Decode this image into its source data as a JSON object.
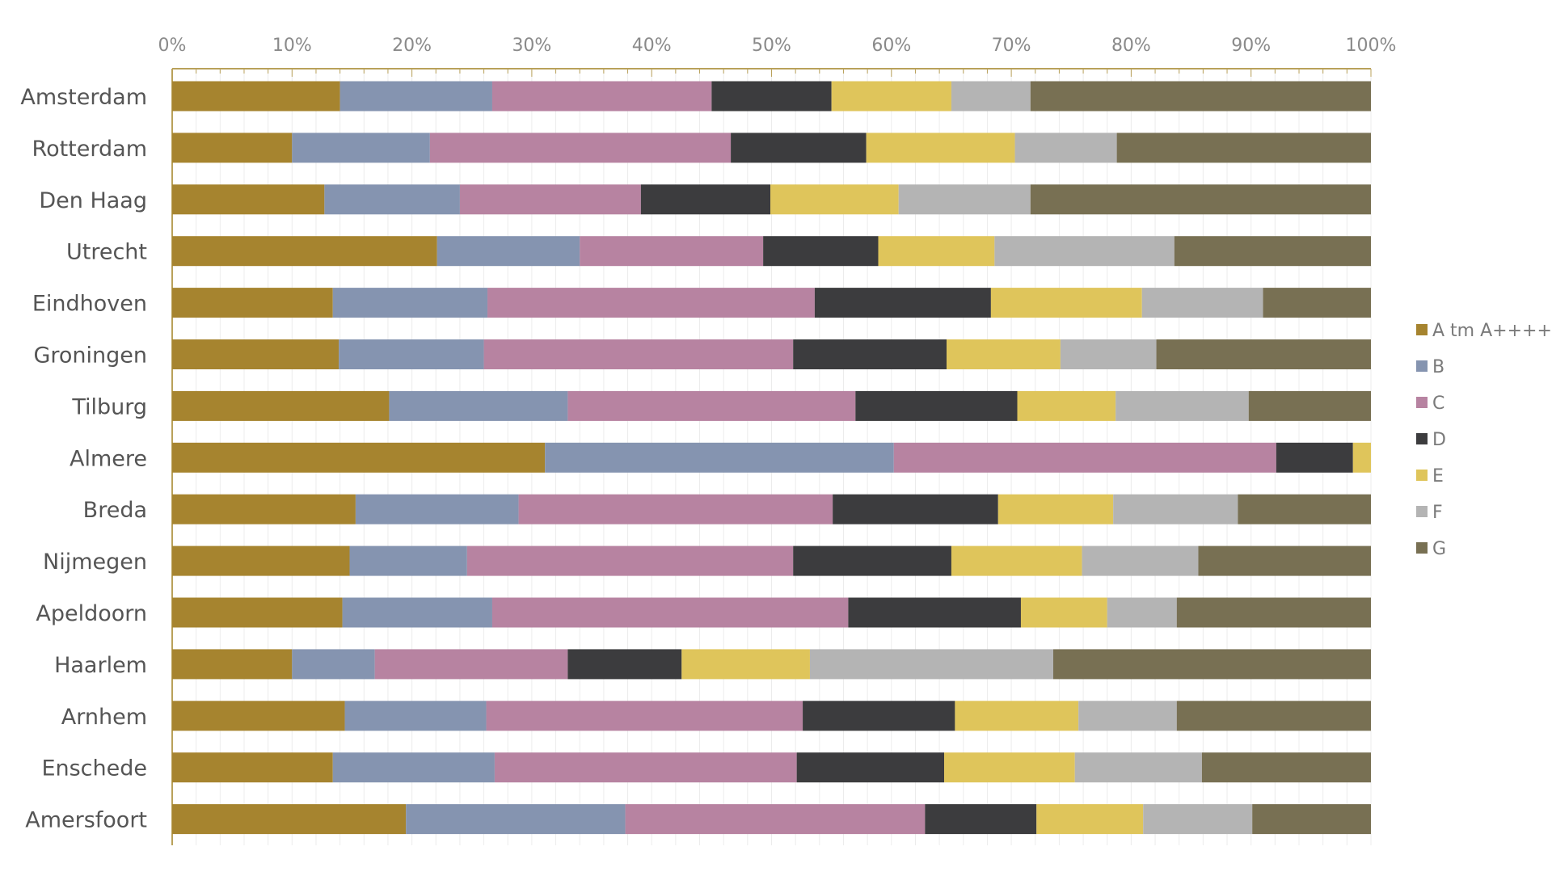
{
  "chart_data": {
    "type": "bar",
    "orientation": "horizontal",
    "stacked": "percent",
    "title": "",
    "xlabel": "",
    "ylabel": "",
    "xlim": [
      0,
      100
    ],
    "x_ticks": [
      "0%",
      "10%",
      "20%",
      "30%",
      "40%",
      "50%",
      "60%",
      "70%",
      "80%",
      "90%",
      "100%"
    ],
    "grid": true,
    "legend_position": "right",
    "categories": [
      "Amsterdam",
      "Rotterdam",
      "Den Haag",
      "Utrecht",
      "Eindhoven",
      "Groningen",
      "Tilburg",
      "Almere",
      "Breda",
      "Nijmegen",
      "Apeldoorn",
      "Haarlem",
      "Arnhem",
      "Enschede",
      "Amersfoort"
    ],
    "series": [
      {
        "name": "A tm A++++",
        "color": "#a6842f",
        "values": [
          14.0,
          10.0,
          12.7,
          22.1,
          13.4,
          13.9,
          18.1,
          31.1,
          15.3,
          14.8,
          14.2,
          10.0,
          14.4,
          13.4,
          19.5
        ]
      },
      {
        "name": "B",
        "color": "#8594b0",
        "values": [
          12.7,
          11.5,
          11.3,
          11.9,
          12.9,
          12.1,
          14.9,
          29.1,
          13.6,
          9.8,
          12.5,
          6.9,
          11.8,
          13.5,
          18.3
        ]
      },
      {
        "name": "C",
        "color": "#b783a1",
        "values": [
          18.3,
          25.1,
          15.1,
          15.3,
          27.3,
          25.8,
          24.0,
          31.9,
          26.2,
          27.2,
          29.7,
          16.1,
          26.4,
          25.2,
          25.0
        ]
      },
      {
        "name": "D",
        "color": "#3c3c3e",
        "values": [
          10.0,
          11.3,
          10.8,
          9.6,
          14.7,
          12.8,
          13.5,
          6.4,
          13.8,
          13.2,
          14.4,
          9.5,
          12.7,
          12.3,
          9.3
        ]
      },
      {
        "name": "E",
        "color": "#dfc55b",
        "values": [
          10.0,
          12.4,
          10.7,
          9.7,
          12.6,
          9.5,
          8.2,
          1.5,
          9.6,
          10.9,
          7.2,
          10.7,
          10.3,
          10.9,
          8.9
        ]
      },
      {
        "name": "F",
        "color": "#b4b4b4",
        "values": [
          6.6,
          8.5,
          11.0,
          15.0,
          10.1,
          8.0,
          11.1,
          0.0,
          10.4,
          9.7,
          5.8,
          20.3,
          8.2,
          10.6,
          9.1
        ]
      },
      {
        "name": "G",
        "color": "#787053",
        "values": [
          28.4,
          21.2,
          28.4,
          16.4,
          9.0,
          17.9,
          10.2,
          0.0,
          11.1,
          14.4,
          16.2,
          26.5,
          16.2,
          14.1,
          9.9
        ]
      }
    ]
  }
}
